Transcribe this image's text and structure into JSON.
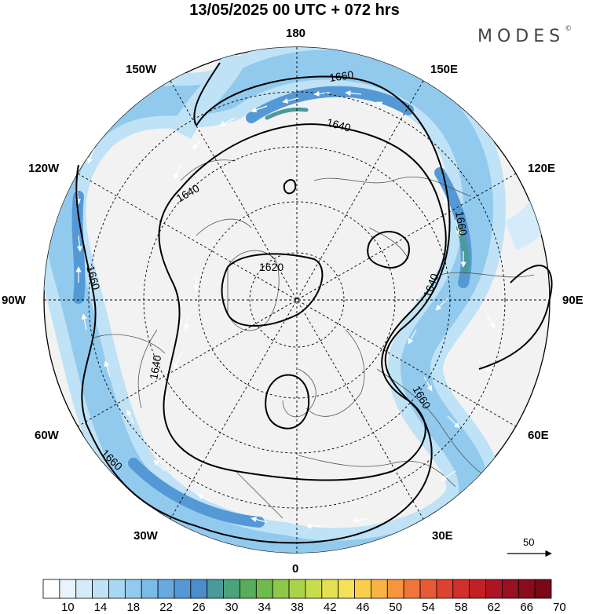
{
  "title": "13/05/2025  00 UTC  + 072 hrs",
  "brand": "MODES",
  "brand_mark": "©",
  "longitude_labels": {
    "top": "180",
    "bottom": "0",
    "left": "90W",
    "right": "90E",
    "nw_outer": "150W",
    "ne_outer": "150E",
    "nw_inner": "120W",
    "ne_inner": "120E",
    "sw_inner": "60W",
    "se_inner": "60E",
    "sw_outer": "30W",
    "se_outer": "30E"
  },
  "contour_labels": [
    "1660",
    "1640",
    "1640",
    "1660",
    "1640",
    "1620",
    "1640",
    "1660",
    "1660",
    "1660"
  ],
  "vector_scale": "50",
  "colorbar": {
    "tick_labels": [
      "10",
      "14",
      "18",
      "22",
      "26",
      "30",
      "34",
      "38",
      "42",
      "46",
      "50",
      "54",
      "58",
      "62",
      "66",
      "70"
    ],
    "colors": [
      "#ffffff",
      "#e8f4fc",
      "#d4ecf9",
      "#bfe2f6",
      "#a9d7f2",
      "#92caee",
      "#7bbbe8",
      "#66aae0",
      "#5499d6",
      "#4a8fc9",
      "#4a9a9a",
      "#4aa37a",
      "#56ad5c",
      "#6fbb4e",
      "#8dc84a",
      "#abd34a",
      "#c9dc4d",
      "#e3e052",
      "#f6e055",
      "#fbce4b",
      "#f9b244",
      "#f5953f",
      "#ef763a",
      "#e85a35",
      "#de4130",
      "#d22e2b",
      "#c21f27",
      "#ae1524",
      "#9a1020",
      "#8a0c1c",
      "#7a0818"
    ]
  }
}
